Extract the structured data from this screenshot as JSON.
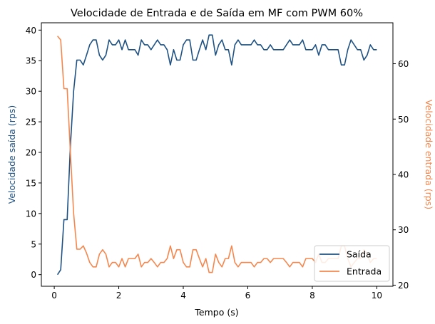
{
  "chart_data": {
    "type": "line",
    "title": "Velocidade de Entrada e de Saída em MF com PWM 60%",
    "xlabel": "Tempo (s)",
    "ylabel_left": "Velocidade saída (rps)",
    "ylabel_right": "Velocidade entrada (rps)",
    "xlim": [
      -0.4,
      10.5
    ],
    "ylim_left": [
      -1.9,
      41.2
    ],
    "ylim_right": [
      19.8,
      67.4
    ],
    "xticks": [
      0,
      2,
      4,
      6,
      8,
      10
    ],
    "yticks_left": [
      0,
      5,
      10,
      15,
      20,
      25,
      30,
      35,
      40
    ],
    "yticks_right": [
      20,
      30,
      40,
      50,
      60
    ],
    "grid": false,
    "legend_position": "lower-right",
    "x": [
      0.1,
      0.2,
      0.3,
      0.4,
      0.5,
      0.6,
      0.7,
      0.8,
      0.9,
      1.0,
      1.1,
      1.2,
      1.3,
      1.4,
      1.5,
      1.6,
      1.7,
      1.8,
      1.9,
      2.0,
      2.1,
      2.2,
      2.3,
      2.4,
      2.5,
      2.6,
      2.7,
      2.8,
      2.9,
      3.0,
      3.1,
      3.2,
      3.3,
      3.4,
      3.5,
      3.6,
      3.7,
      3.8,
      3.9,
      4.0,
      4.1,
      4.2,
      4.3,
      4.4,
      4.5,
      4.6,
      4.7,
      4.8,
      4.9,
      5.0,
      5.1,
      5.2,
      5.3,
      5.4,
      5.5,
      5.6,
      5.7,
      5.8,
      5.9,
      6.0,
      6.1,
      6.2,
      6.3,
      6.4,
      6.5,
      6.6,
      6.7,
      6.8,
      6.9,
      7.0,
      7.1,
      7.2,
      7.3,
      7.4,
      7.5,
      7.6,
      7.7,
      7.8,
      7.9,
      8.0,
      8.1,
      8.2,
      8.3,
      8.4,
      8.5,
      8.6,
      8.7,
      8.8,
      8.9,
      9.0,
      9.1,
      9.2,
      9.3,
      9.4,
      9.5,
      9.6,
      9.7,
      9.8,
      9.9,
      10.0
    ],
    "series": [
      {
        "name": "Saída",
        "color": "#1f5283",
        "axis": "left",
        "values": [
          0,
          0.8,
          9,
          9,
          21,
          30,
          35.1,
          35.1,
          34.3,
          35.9,
          37.6,
          38.4,
          38.4,
          35.9,
          35.1,
          35.9,
          38.4,
          37.6,
          37.6,
          38.4,
          36.8,
          38.4,
          36.8,
          36.8,
          36.8,
          35.9,
          38.4,
          37.6,
          37.6,
          36.8,
          37.6,
          38.4,
          37.6,
          37.6,
          36.8,
          34.3,
          36.8,
          35.1,
          35.1,
          37.6,
          38.4,
          38.4,
          35.1,
          35.1,
          36.8,
          38.4,
          36.8,
          39.2,
          39.2,
          35.9,
          37.6,
          38.4,
          36.8,
          36.8,
          34.3,
          37.6,
          38.4,
          37.6,
          37.6,
          37.6,
          37.6,
          38.4,
          37.6,
          37.6,
          36.8,
          36.8,
          37.6,
          36.8,
          36.8,
          36.8,
          36.8,
          37.6,
          38.4,
          37.6,
          37.6,
          37.6,
          38.4,
          36.8,
          36.8,
          36.8,
          37.6,
          35.9,
          37.6,
          37.6,
          36.8,
          36.8,
          36.8,
          36.8,
          34.3,
          34.3,
          36.8,
          38.4,
          37.6,
          36.8,
          36.8,
          35.1,
          35.9,
          37.6,
          36.8,
          36.8
        ]
      },
      {
        "name": "Entrada",
        "color": "#f4874e",
        "axis": "right",
        "values": [
          65,
          64.3,
          55.5,
          55.5,
          44,
          33,
          26.5,
          26.5,
          27.1,
          25.8,
          24.1,
          23.3,
          23.3,
          25.6,
          26.4,
          25.6,
          23.3,
          24.1,
          24.1,
          23.3,
          24.8,
          23.3,
          24.8,
          24.8,
          24.8,
          25.6,
          23.3,
          24.1,
          24.1,
          24.8,
          24.1,
          23.3,
          24.1,
          24.1,
          24.8,
          27.1,
          24.8,
          26.4,
          26.4,
          24.1,
          23.3,
          23.3,
          26.4,
          26.4,
          24.8,
          23.3,
          24.8,
          22.3,
          22.3,
          25.6,
          24.1,
          23.3,
          24.8,
          24.8,
          27.1,
          24.1,
          23.3,
          24.1,
          24.1,
          24.1,
          24.1,
          23.3,
          24.1,
          24.1,
          24.8,
          24.8,
          24.1,
          24.8,
          24.8,
          24.8,
          24.8,
          24.1,
          23.3,
          24.1,
          24.1,
          24.1,
          23.3,
          24.8,
          24.8,
          24.8,
          24.1,
          25.6,
          24.1,
          24.1,
          24.8,
          24.8,
          24.8,
          24.8,
          27.1,
          27.1,
          24.8,
          23.3,
          24.1,
          24.8,
          24.8,
          26.4,
          25.6,
          24.1,
          24.8,
          24.8
        ]
      }
    ]
  }
}
